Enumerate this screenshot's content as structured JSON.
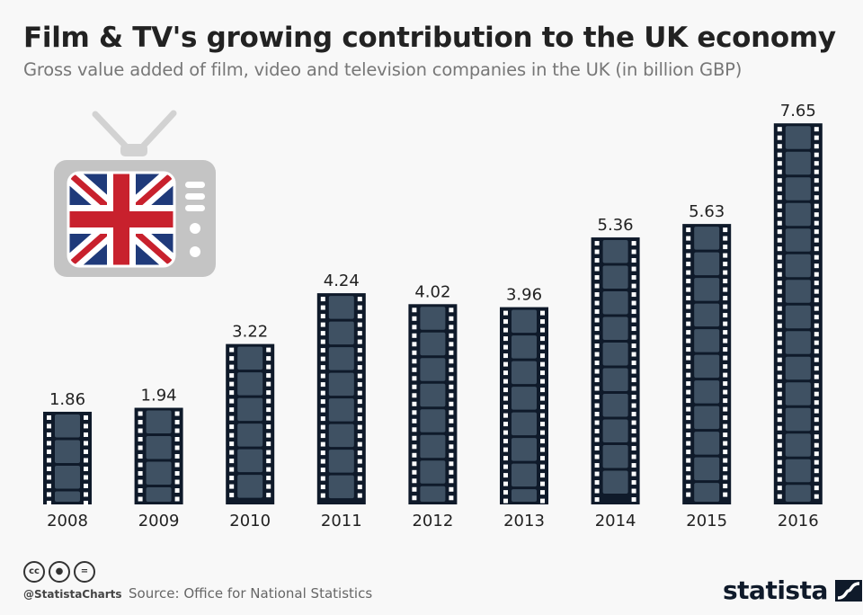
{
  "header": {
    "title": "Film & TV's growing contribution to the UK economy",
    "subtitle": "Gross value added of film, video and television companies in the UK (in billion GBP)"
  },
  "footer": {
    "handle": "@StatistaCharts",
    "source": "Source: Office for National Statistics",
    "license_icons": [
      "cc-icon",
      "attribution-icon",
      "no-derivatives-icon"
    ],
    "logo_text": "statista"
  },
  "colors": {
    "film_border": "#0f1a2a",
    "film_frame": "#3f5163",
    "tv_body": "#c4c4c4",
    "flag_blue": "#1f3a7a",
    "flag_red": "#c8212d"
  },
  "chart_data": {
    "type": "bar",
    "title": "Film & TV's growing contribution to the UK economy",
    "subtitle": "Gross value added of film, video and television companies in the UK (in billion GBP)",
    "xlabel": "",
    "ylabel": "",
    "categories": [
      "2008",
      "2009",
      "2010",
      "2011",
      "2012",
      "2013",
      "2014",
      "2015",
      "2016"
    ],
    "values": [
      1.86,
      1.94,
      3.22,
      4.24,
      4.02,
      3.96,
      5.36,
      5.63,
      7.65
    ],
    "value_labels": [
      "1.86",
      "1.94",
      "3.22",
      "4.24",
      "4.02",
      "3.96",
      "5.36",
      "5.63",
      "7.65"
    ],
    "ylim": [
      0,
      7.65
    ],
    "grid": false,
    "legend": "none"
  }
}
